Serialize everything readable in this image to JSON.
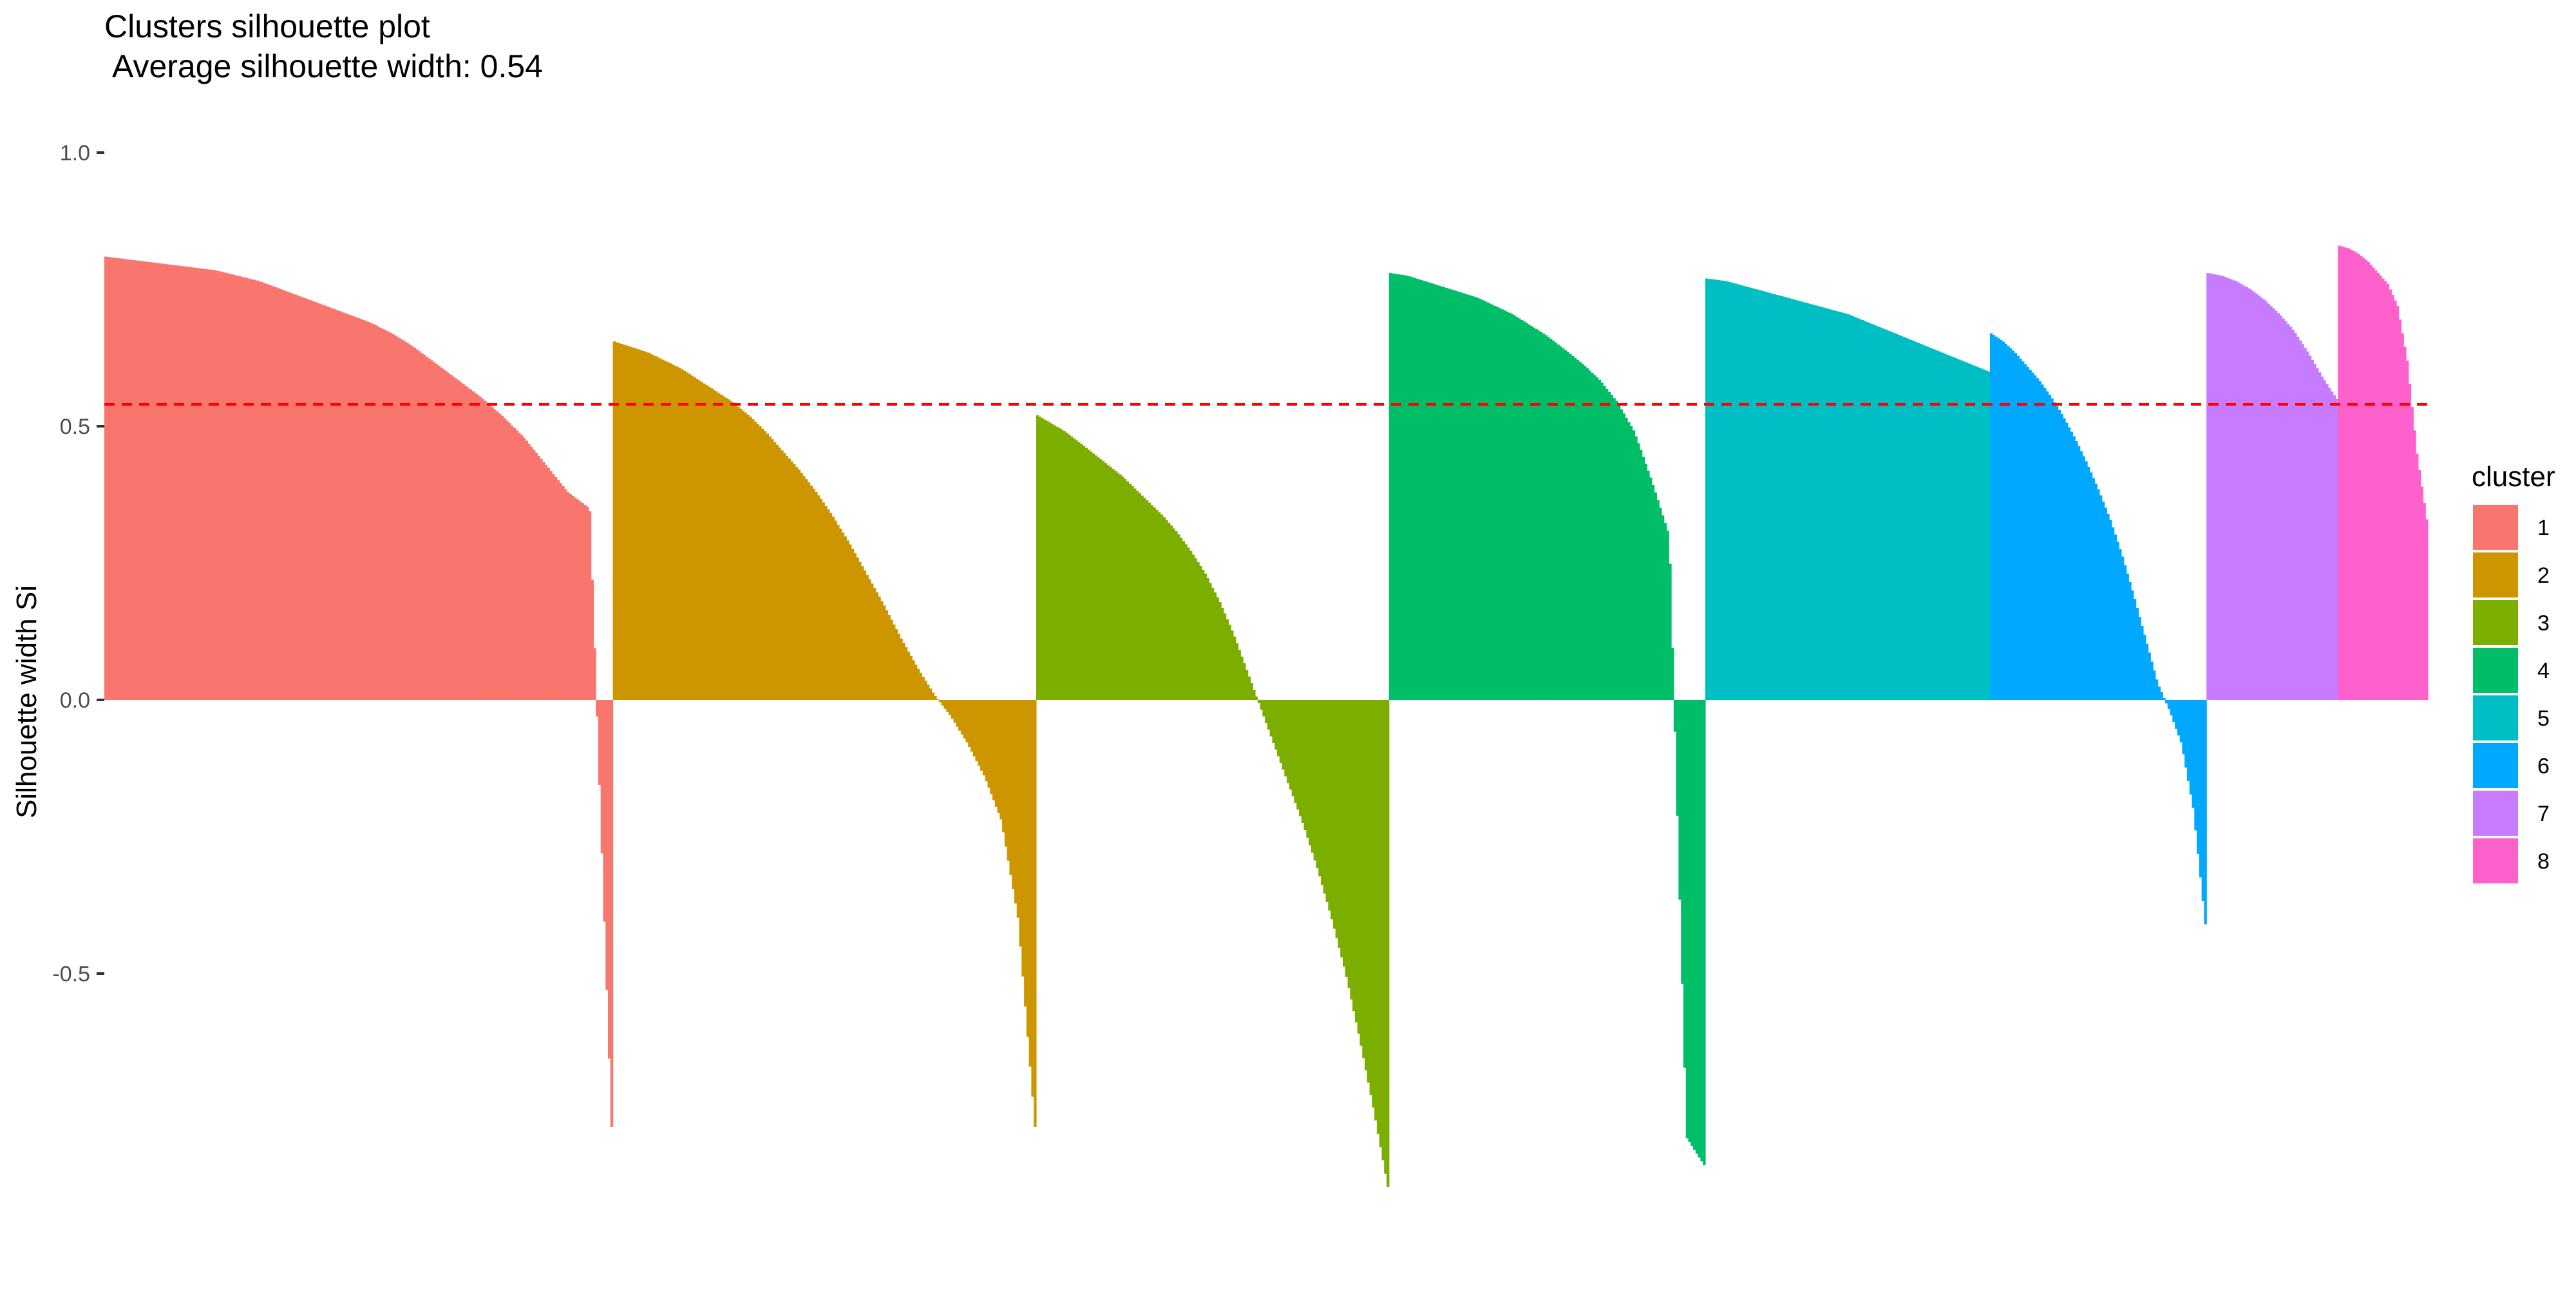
{
  "chart_data": {
    "type": "bar",
    "title": "Clusters silhouette plot",
    "subtitle": "Average silhouette width: 0.54",
    "xlabel": "",
    "ylabel": "Silhouette width Si",
    "ylim": [
      -0.9,
      1.0
    ],
    "yticks": [
      -0.5,
      0.0,
      0.5,
      1.0
    ],
    "ytick_labels": [
      "-0.5",
      "0.0",
      "0.5",
      "1.0"
    ],
    "grid": false,
    "legend_title": "cluster",
    "legend_position": "right",
    "average_line": {
      "value": 0.54,
      "color": "#FF0000",
      "style": "dashed"
    },
    "x_axis": {
      "ticks": false,
      "labels": false
    },
    "series": [
      {
        "cluster": "1",
        "color": "#F8766D",
        "n": 209,
        "values": [
          0.81,
          0.805,
          0.8,
          0.795,
          0.79,
          0.785,
          0.775,
          0.765,
          0.75,
          0.735,
          0.72,
          0.705,
          0.69,
          0.67,
          0.645,
          0.615,
          0.585,
          0.555,
          0.52,
          0.48,
          0.43,
          0.38,
          0.35,
          -0.78
        ]
      },
      {
        "cluster": "2",
        "color": "#CD9600",
        "n": 174,
        "values": [
          0.655,
          0.645,
          0.635,
          0.62,
          0.605,
          0.585,
          0.565,
          0.545,
          0.52,
          0.49,
          0.455,
          0.42,
          0.38,
          0.335,
          0.285,
          0.23,
          0.175,
          0.115,
          0.06,
          0.01,
          -0.03,
          -0.08,
          -0.14,
          -0.22,
          -0.4,
          -0.78
        ]
      },
      {
        "cluster": "3",
        "color": "#7CAE00",
        "n": 145,
        "values": [
          0.52,
          0.505,
          0.49,
          0.47,
          0.45,
          0.43,
          0.41,
          0.385,
          0.36,
          0.335,
          0.305,
          0.27,
          0.23,
          0.18,
          0.12,
          0.05,
          -0.02,
          -0.09,
          -0.16,
          -0.23,
          -0.31,
          -0.4,
          -0.5,
          -0.62,
          -0.75,
          -0.89
        ]
      },
      {
        "cluster": "4",
        "color": "#00BE67",
        "n": 130,
        "values": [
          0.78,
          0.775,
          0.765,
          0.755,
          0.745,
          0.735,
          0.72,
          0.705,
          0.685,
          0.665,
          0.64,
          0.615,
          0.585,
          0.545,
          0.49,
          0.4,
          0.3,
          -0.8,
          -0.85
        ]
      },
      {
        "cluster": "5",
        "color": "#00BFC4",
        "n": 117,
        "values": [
          0.77,
          0.765,
          0.755,
          0.745,
          0.735,
          0.725,
          0.715,
          0.705,
          0.69,
          0.675,
          0.66,
          0.645,
          0.63,
          0.615,
          0.6
        ]
      },
      {
        "cluster": "6",
        "color": "#00A9FF",
        "n": 89,
        "values": [
          0.67,
          0.655,
          0.635,
          0.61,
          0.585,
          0.555,
          0.52,
          0.48,
          0.435,
          0.385,
          0.33,
          0.265,
          0.19,
          0.11,
          0.03,
          -0.02,
          -0.08,
          -0.2,
          -0.41
        ]
      },
      {
        "cluster": "7",
        "color": "#C77CFF",
        "n": 54,
        "values": [
          0.78,
          0.775,
          0.765,
          0.75,
          0.73,
          0.705,
          0.675,
          0.635,
          0.59,
          0.55
        ]
      },
      {
        "cluster": "8",
        "color": "#FF61CC",
        "n": 37,
        "values": [
          0.83,
          0.825,
          0.815,
          0.8,
          0.78,
          0.76,
          0.72,
          0.62,
          0.45,
          0.33
        ]
      }
    ]
  }
}
